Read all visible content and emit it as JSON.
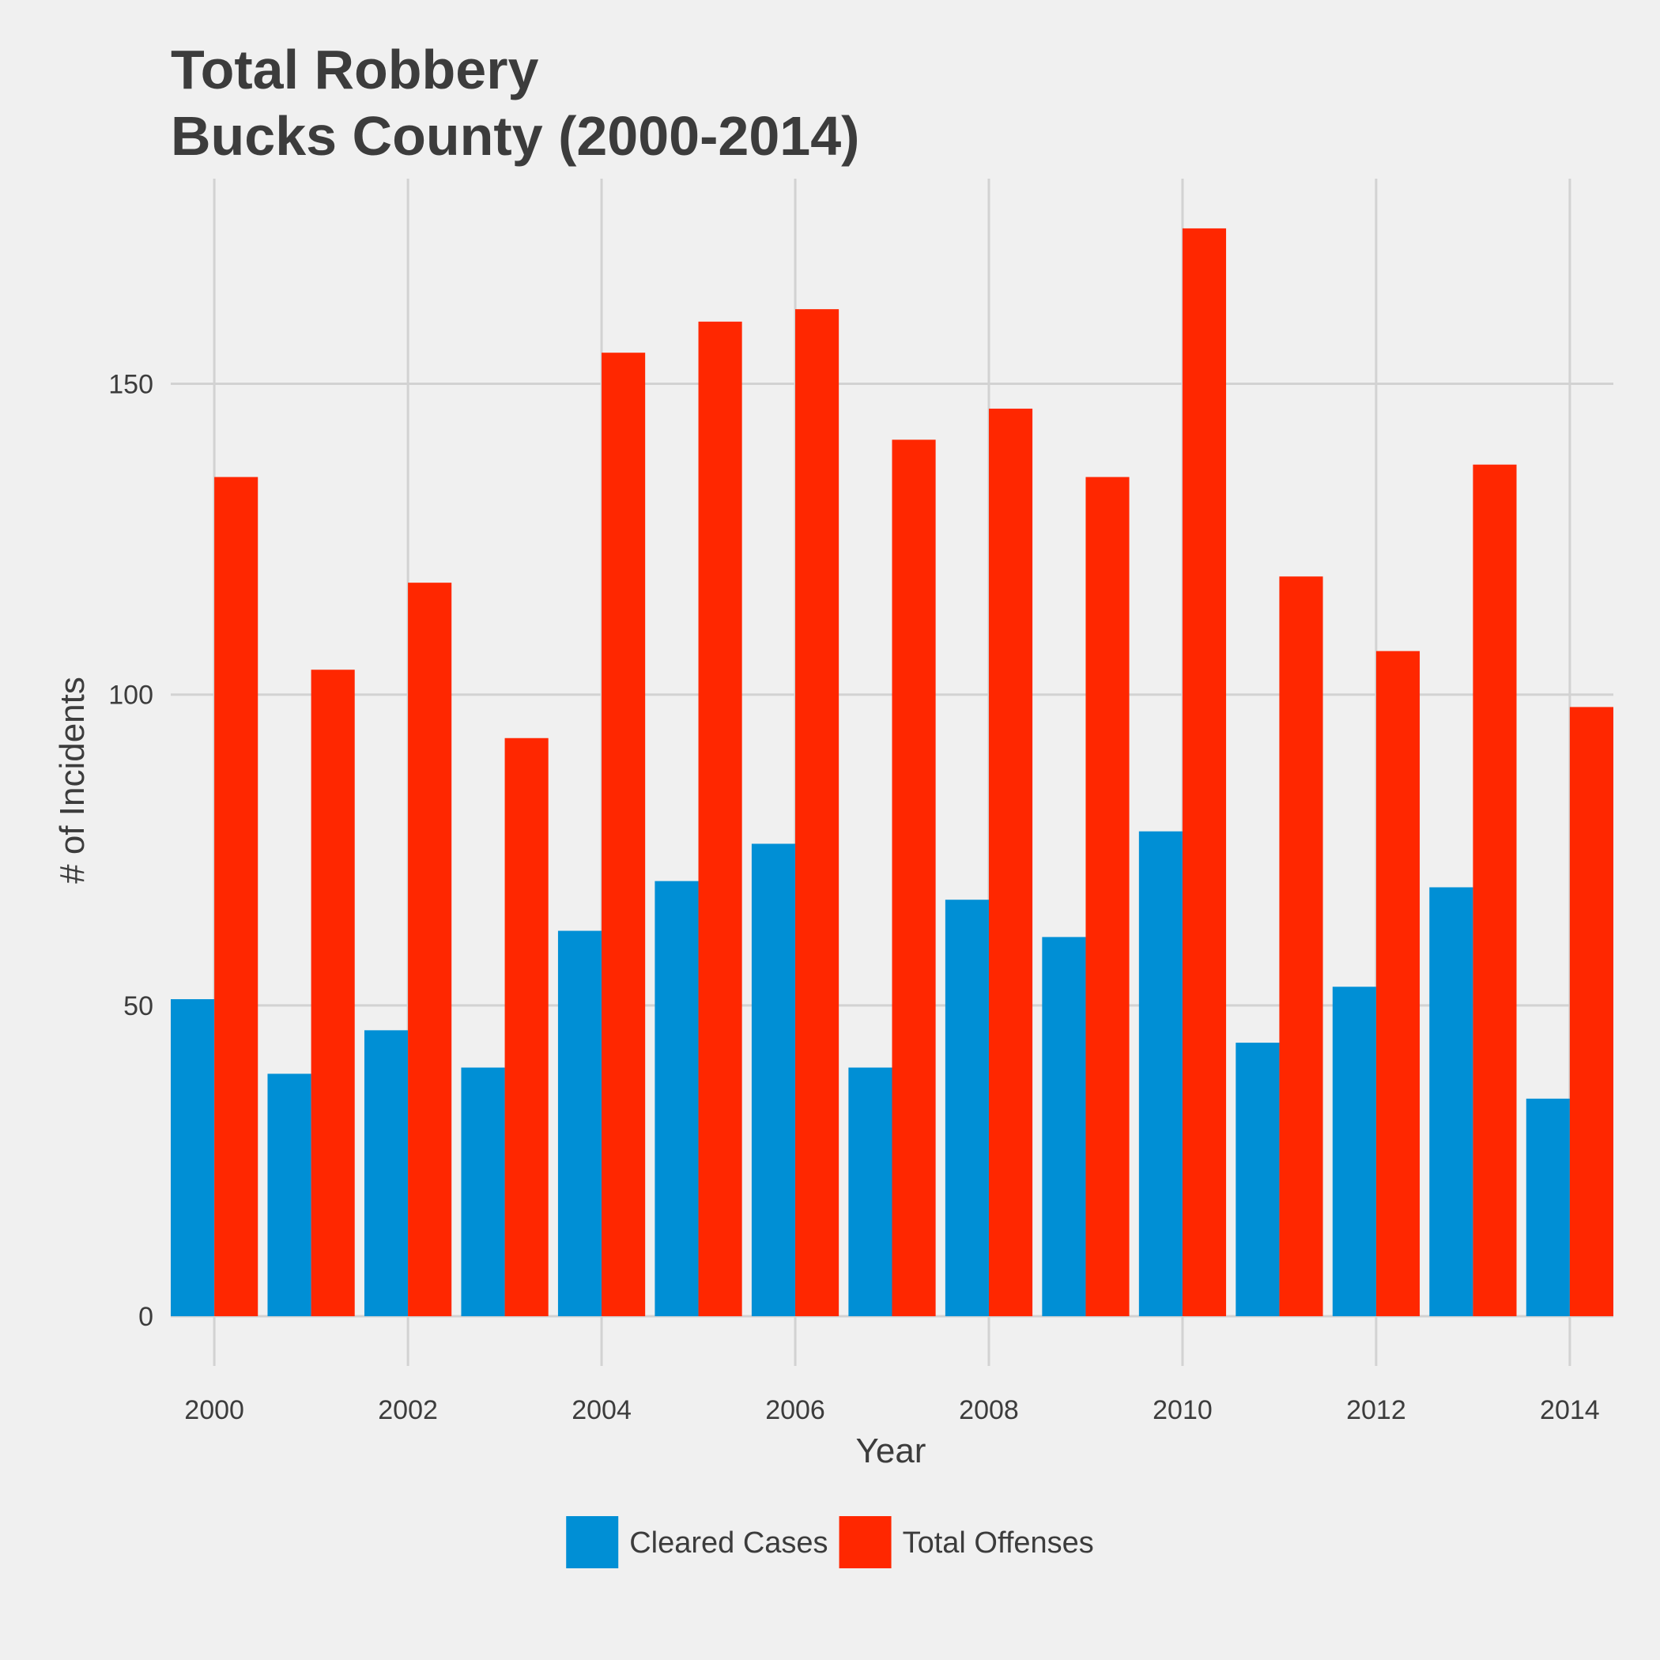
{
  "chart_data": {
    "type": "bar",
    "title": [
      "Total Robbery",
      "Bucks County (2000-2014)"
    ],
    "xlabel": "Year",
    "ylabel": "# of Incidents",
    "categories": [
      2000,
      2001,
      2002,
      2003,
      2004,
      2005,
      2006,
      2007,
      2008,
      2009,
      2010,
      2011,
      2012,
      2013,
      2014
    ],
    "x_tick_labels": [
      "2000",
      "2002",
      "2004",
      "2006",
      "2008",
      "2010",
      "2012",
      "2014"
    ],
    "y_ticks": [
      0,
      50,
      100,
      150
    ],
    "ylim": [
      -8,
      183
    ],
    "grid": true,
    "legend_position": "bottom",
    "series": [
      {
        "name": "Cleared Cases",
        "color": "#008fd5",
        "values": [
          51,
          39,
          46,
          40,
          62,
          70,
          76,
          40,
          67,
          61,
          78,
          44,
          53,
          69,
          35
        ]
      },
      {
        "name": "Total Offenses",
        "color": "#ff2700",
        "values": [
          135,
          104,
          118,
          93,
          155,
          160,
          162,
          141,
          146,
          135,
          175,
          119,
          107,
          137,
          98
        ]
      }
    ]
  }
}
